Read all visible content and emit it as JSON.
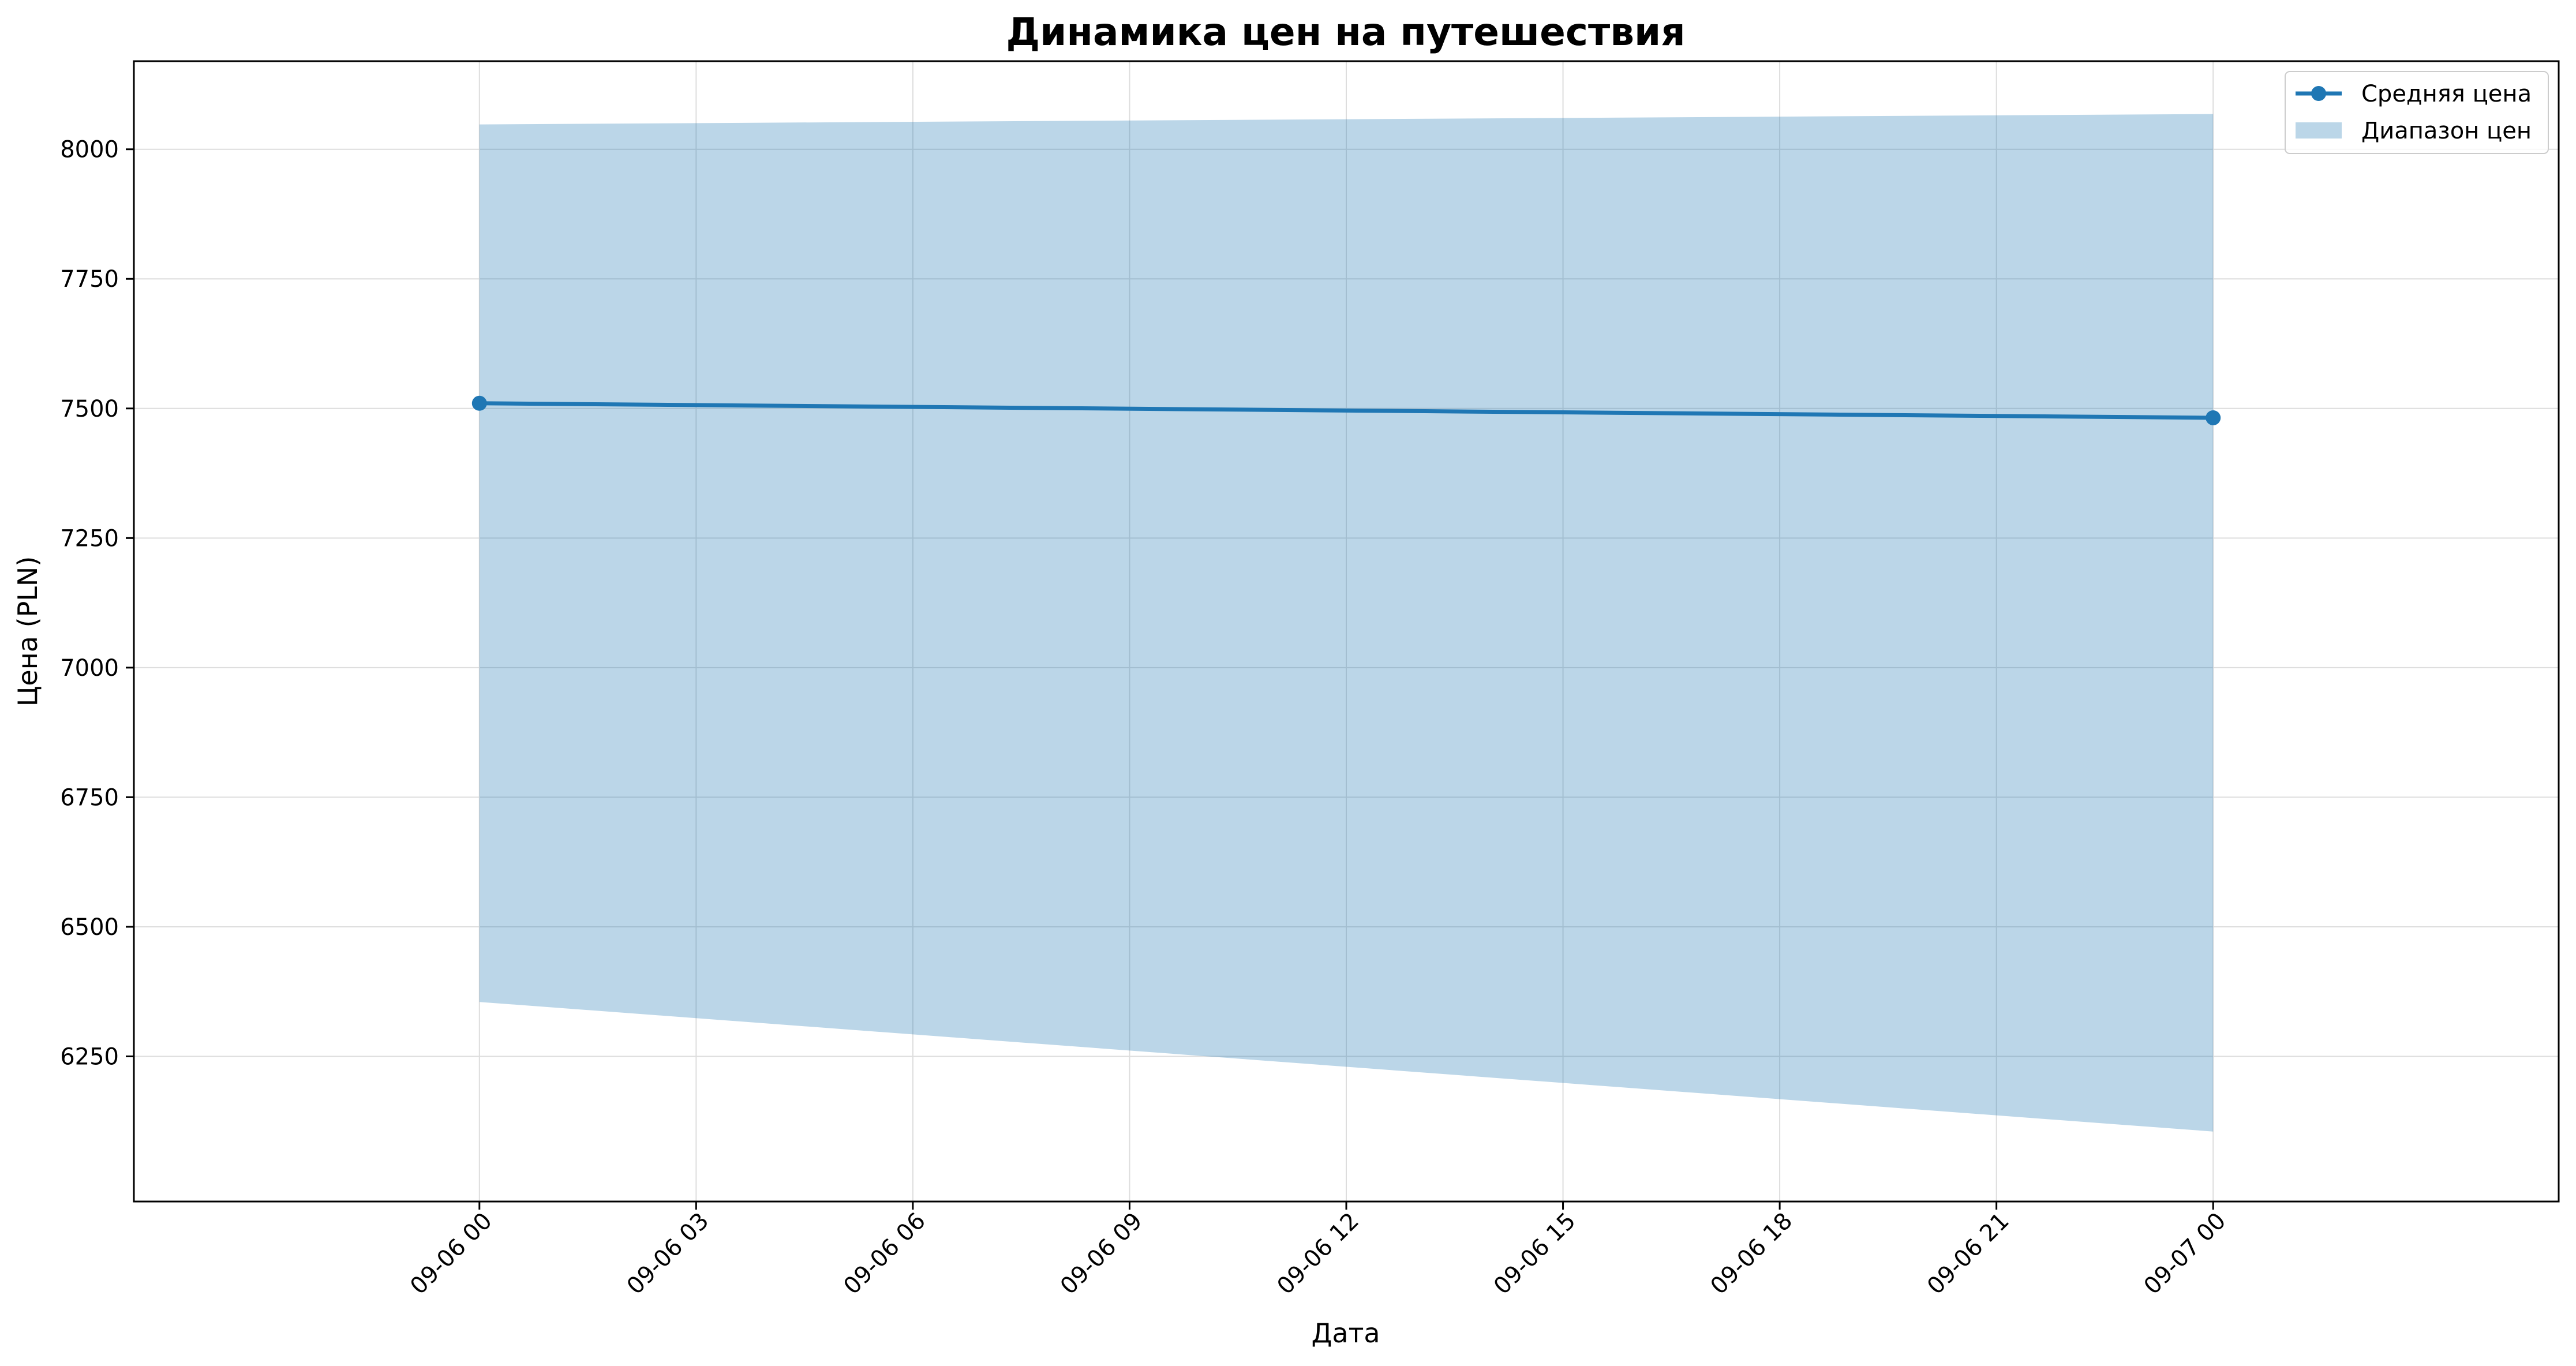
{
  "chart_data": {
    "type": "line",
    "title": "Динамика цен на путешествия",
    "xlabel": "Дата",
    "ylabel": "Цена (PLN)",
    "x": [
      "2024-09-06 00:00",
      "2024-09-07 00:00"
    ],
    "series": [
      {
        "name": "Средняя цена",
        "kind": "line-with-markers",
        "color": "#1f77b4",
        "values": [
          7510,
          7482
        ]
      },
      {
        "name": "Диапазон цен",
        "kind": "band",
        "color": "#1f77b4",
        "opacity": 0.3,
        "lower": [
          6355,
          6105
        ],
        "upper": [
          8048,
          8068
        ]
      }
    ],
    "ylim": [
      5970,
      8170
    ],
    "xlim": [
      "2024-09-05 19:13",
      "2024-09-07 04:47"
    ],
    "y_ticks": [
      6250,
      6500,
      6750,
      7000,
      7250,
      7500,
      7750,
      8000
    ],
    "x_ticks": [
      {
        "t": "2024-09-06 00:00",
        "label": "09-06 00"
      },
      {
        "t": "2024-09-06 03:00",
        "label": "09-06 03"
      },
      {
        "t": "2024-09-06 06:00",
        "label": "09-06 06"
      },
      {
        "t": "2024-09-06 09:00",
        "label": "09-06 09"
      },
      {
        "t": "2024-09-06 12:00",
        "label": "09-06 12"
      },
      {
        "t": "2024-09-06 15:00",
        "label": "09-06 15"
      },
      {
        "t": "2024-09-06 18:00",
        "label": "09-06 18"
      },
      {
        "t": "2024-09-06 21:00",
        "label": "09-06 21"
      },
      {
        "t": "2024-09-07 00:00",
        "label": "09-07 00"
      }
    ],
    "grid": true,
    "legend_position": "top-right"
  }
}
